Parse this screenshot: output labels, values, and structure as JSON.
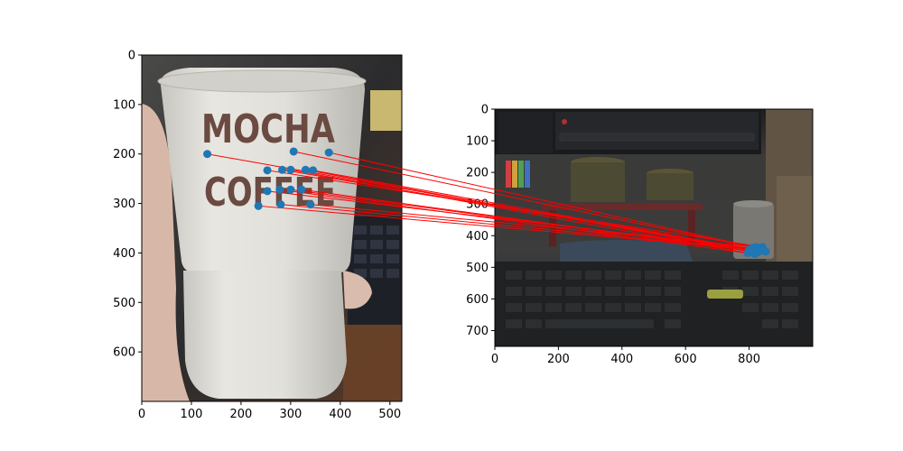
{
  "chart_data": {
    "type": "scatter",
    "panels": [
      {
        "name": "left-image",
        "xlim": [
          0,
          524
        ],
        "ylim": [
          700,
          0
        ],
        "xticks": [
          0,
          100,
          200,
          300,
          400,
          500
        ],
        "yticks": [
          0,
          100,
          200,
          300,
          400,
          500,
          600
        ],
        "image": {
          "cup_text_line1": "MOCHA",
          "cup_text_line2": "COFFEE",
          "background_color": "#3a3a3a",
          "cup_color": "#e4e2dc",
          "text_color": "#6b4a42"
        }
      },
      {
        "name": "right-image",
        "xlim": [
          0,
          1000
        ],
        "ylim": [
          750,
          0
        ],
        "xticks": [
          0,
          200,
          400,
          600,
          800
        ],
        "yticks": [
          0,
          100,
          200,
          300,
          400,
          500,
          600,
          700
        ],
        "image": {
          "background_color": "#2e2f2f",
          "keyboard_color": "#1f2122"
        }
      }
    ],
    "keypoints_left": [
      [
        132,
        200
      ],
      [
        306,
        195
      ],
      [
        377,
        197
      ],
      [
        253,
        233
      ],
      [
        283,
        232
      ],
      [
        300,
        232
      ],
      [
        330,
        232
      ],
      [
        345,
        233
      ],
      [
        253,
        275
      ],
      [
        278,
        272
      ],
      [
        300,
        272
      ],
      [
        322,
        272
      ],
      [
        235,
        305
      ],
      [
        280,
        302
      ],
      [
        340,
        302
      ]
    ],
    "keypoints_right": [
      [
        800,
        445
      ],
      [
        815,
        438
      ],
      [
        830,
        440
      ],
      [
        842,
        436
      ],
      [
        852,
        450
      ],
      [
        795,
        455
      ],
      [
        810,
        452
      ],
      [
        825,
        447
      ],
      [
        835,
        443
      ],
      [
        818,
        458
      ],
      [
        805,
        448
      ],
      [
        828,
        452
      ],
      [
        838,
        446
      ],
      [
        808,
        441
      ],
      [
        822,
        436
      ]
    ],
    "match_pairs": [
      [
        0,
        0
      ],
      [
        1,
        1
      ],
      [
        2,
        2
      ],
      [
        3,
        3
      ],
      [
        4,
        4
      ],
      [
        5,
        5
      ],
      [
        6,
        6
      ],
      [
        7,
        7
      ],
      [
        8,
        8
      ],
      [
        9,
        9
      ],
      [
        10,
        10
      ],
      [
        11,
        11
      ],
      [
        12,
        12
      ],
      [
        13,
        13
      ],
      [
        14,
        14
      ]
    ],
    "colors": {
      "match_line": "#ff0000",
      "keypoint": "#1f77b4"
    }
  }
}
